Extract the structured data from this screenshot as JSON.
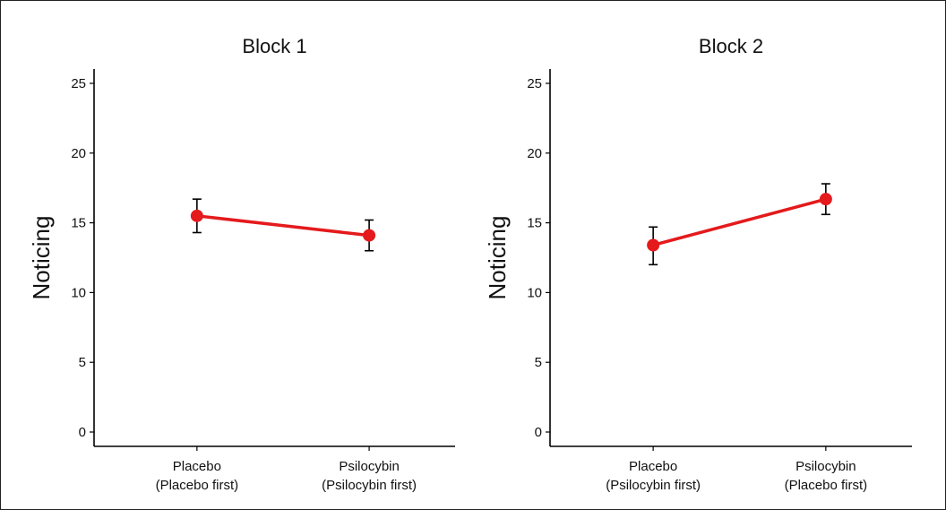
{
  "chart_data": [
    {
      "type": "line",
      "title": "Block 1",
      "xlabel": "",
      "ylabel": "Noticing",
      "categories": [
        "Placebo\n(Placebo first)",
        "Psilocybin\n(Psilocybin first)"
      ],
      "series": [
        {
          "values": [
            15.5,
            14.1
          ],
          "error_low": [
            14.3,
            13.0
          ],
          "error_high": [
            16.7,
            15.2
          ]
        }
      ],
      "ylim": [
        0,
        25
      ],
      "yticks": [
        0,
        5,
        10,
        15,
        20,
        25
      ],
      "grid": false,
      "color": "#e41a1c"
    },
    {
      "type": "line",
      "title": "Block 2",
      "xlabel": "",
      "ylabel": "Noticing",
      "categories": [
        "Placebo\n(Psilocybin first)",
        "Psilocybin\n(Placebo first)"
      ],
      "series": [
        {
          "values": [
            13.4,
            16.7
          ],
          "error_low": [
            12.0,
            15.6
          ],
          "error_high": [
            14.7,
            17.8
          ]
        }
      ],
      "ylim": [
        0,
        25
      ],
      "yticks": [
        0,
        5,
        10,
        15,
        20,
        25
      ],
      "grid": false,
      "color": "#e41a1c"
    }
  ]
}
